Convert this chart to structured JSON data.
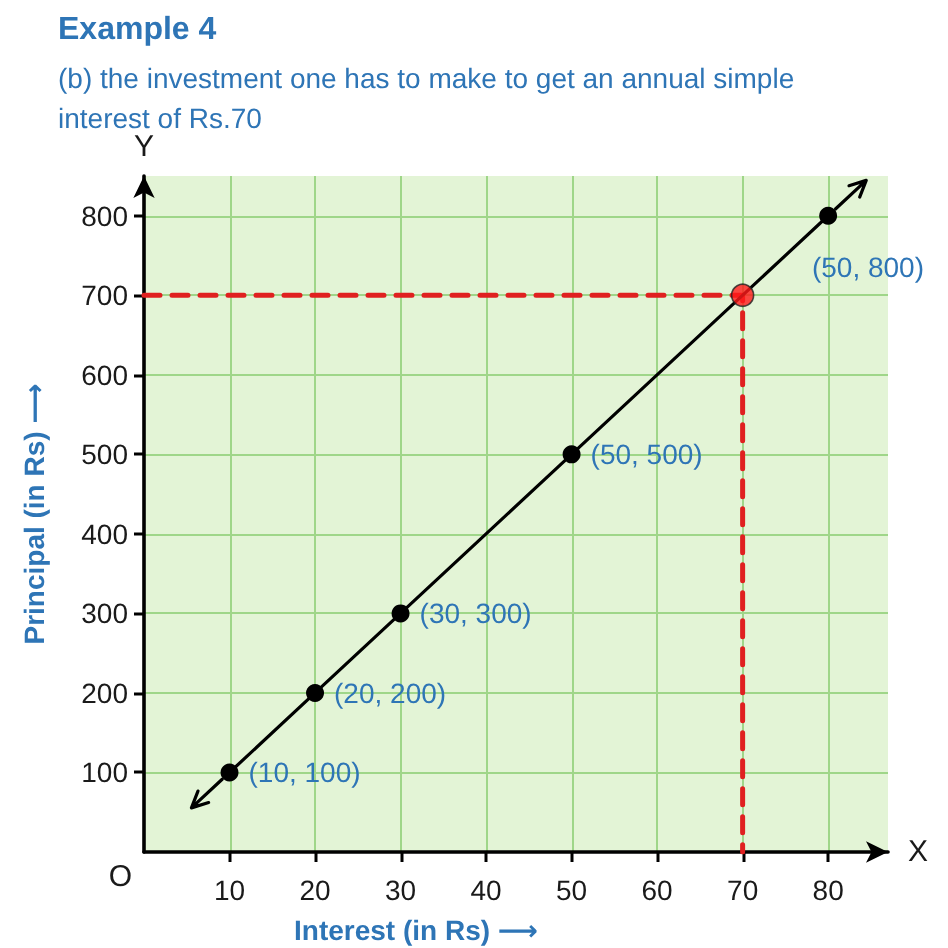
{
  "chart_data": {
    "type": "scatter",
    "title": "Example 4",
    "subtitle": "(b) the investment one has to make to get an annual simple interest of Rs.70",
    "xlabel": "Interest (in Rs) ⟶",
    "ylabel": "Principal (in Rs) ⟶",
    "xlim": [
      0,
      87
    ],
    "ylim": [
      0,
      850
    ],
    "xticks": [
      10,
      20,
      30,
      40,
      50,
      60,
      70,
      80
    ],
    "yticks": [
      100,
      200,
      300,
      400,
      500,
      600,
      700,
      800
    ],
    "grid": true,
    "series": [
      {
        "type": "line",
        "color": "#e02020",
        "x": [
          0,
          70,
          70
        ],
        "values": [
          700,
          700,
          0
        ],
        "marker": "none",
        "line_style": "dashed"
      },
      {
        "type": "line",
        "color": "#000000",
        "x": [
          10,
          20,
          30,
          50,
          80
        ],
        "values": [
          100,
          200,
          300,
          500,
          800
        ],
        "marker": "circle",
        "line_style": "solid",
        "value_labels": [
          "(10, 100)",
          "(20, 200)",
          "(30, 300)",
          "(50, 500)",
          "(50, 800)"
        ]
      },
      {
        "type": "scatter",
        "color": "#ff1a1a",
        "x": [
          70
        ],
        "values": [
          700
        ],
        "marker": "circle"
      }
    ],
    "annotations": [
      "O",
      "X",
      "Y"
    ]
  }
}
